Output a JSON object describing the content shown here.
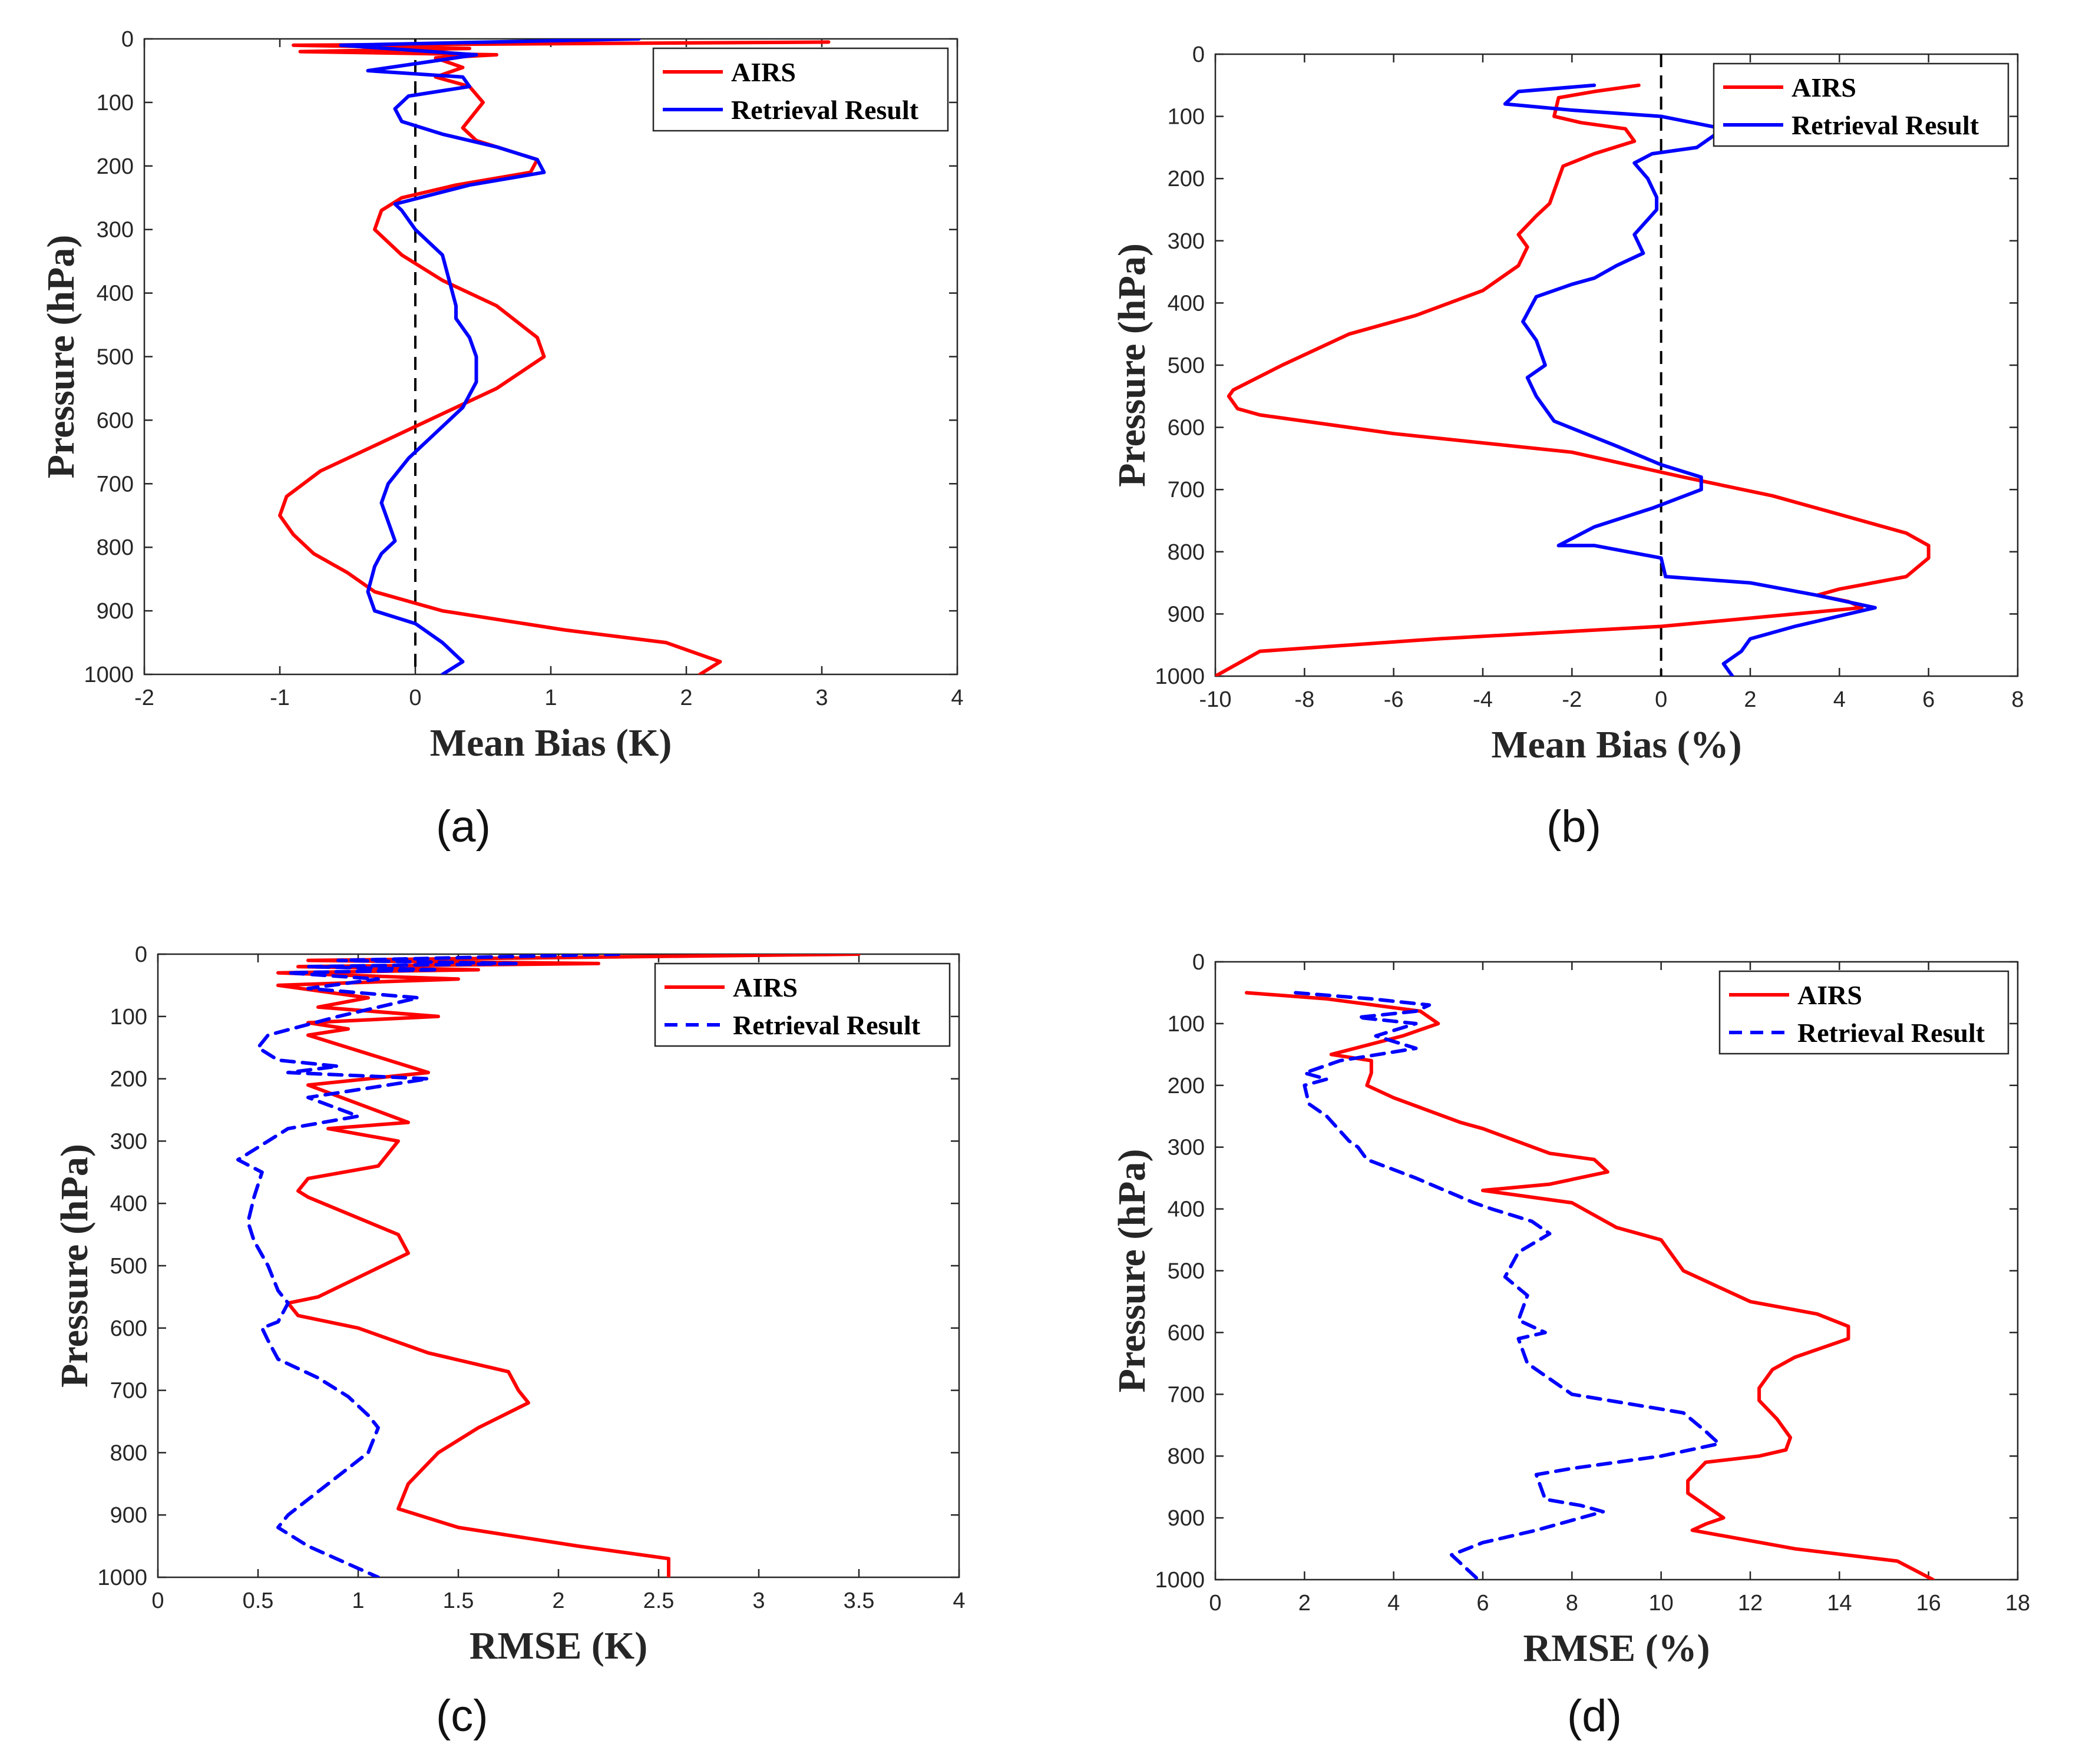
{
  "chart_data": [
    {
      "type": "line",
      "panel": "(a)",
      "xlabel": "Mean Bias (K)",
      "ylabel": "Pressure (hPa)",
      "xlim": [
        -2,
        4
      ],
      "xticks": [
        -2,
        -1,
        0,
        1,
        2,
        3,
        4
      ],
      "ylim": [
        0,
        1000
      ],
      "yticks": [
        0,
        100,
        200,
        300,
        400,
        500,
        600,
        700,
        800,
        900,
        1000
      ],
      "y_reversed": true,
      "reference_line_x": 0,
      "legend_position": "top-right",
      "series": [
        {
          "name": "AIRS",
          "color": "#ff0000",
          "dash": "solid",
          "x": [
            3.05,
            -0.9,
            0.4,
            -0.85,
            0.6,
            0.15,
            0.35,
            0.15,
            0.4,
            0.5,
            0.35,
            0.45,
            0.9,
            0.85,
            0.3,
            -0.1,
            -0.25,
            -0.3,
            -0.1,
            0.2,
            0.6,
            0.9,
            0.95,
            0.6,
            0.1,
            -0.3,
            -0.7,
            -0.95,
            -1.0,
            -0.9,
            -0.75,
            -0.5,
            -0.3,
            0.2,
            1.1,
            1.85,
            2.25,
            2.1
          ],
          "y": [
            5,
            10,
            15,
            20,
            25,
            30,
            45,
            60,
            75,
            100,
            140,
            160,
            190,
            210,
            230,
            250,
            270,
            300,
            340,
            380,
            420,
            470,
            500,
            550,
            600,
            640,
            680,
            720,
            750,
            780,
            810,
            840,
            870,
            900,
            930,
            950,
            980,
            1000
          ]
        },
        {
          "name": "Retrieval Result",
          "color": "#0000ff",
          "dash": "solid",
          "x": [
            1.65,
            -0.55,
            0.45,
            -0.35,
            0.35,
            0.4,
            -0.05,
            -0.15,
            -0.1,
            0.2,
            0.6,
            0.9,
            0.95,
            0.4,
            -0.15,
            -0.1,
            0.0,
            0.2,
            0.25,
            0.3,
            0.3,
            0.4,
            0.45,
            0.45,
            0.35,
            0.15,
            -0.05,
            -0.2,
            -0.25,
            -0.2,
            -0.15,
            -0.25,
            -0.3,
            -0.35,
            -0.3,
            0.0,
            0.2,
            0.35,
            0.2
          ],
          "y": [
            0,
            10,
            25,
            50,
            60,
            75,
            90,
            110,
            130,
            150,
            170,
            190,
            210,
            230,
            260,
            270,
            300,
            340,
            380,
            420,
            440,
            470,
            500,
            540,
            580,
            620,
            660,
            700,
            730,
            760,
            790,
            810,
            830,
            870,
            900,
            920,
            950,
            980,
            1000
          ]
        }
      ]
    },
    {
      "type": "line",
      "panel": "(b)",
      "xlabel": "Mean Bias (%)",
      "ylabel": "Pressure (hPa)",
      "xlim": [
        -10,
        8
      ],
      "xticks": [
        -10,
        -8,
        -6,
        -4,
        -2,
        0,
        2,
        4,
        6,
        8
      ],
      "ylim": [
        0,
        1000
      ],
      "yticks": [
        0,
        100,
        200,
        300,
        400,
        500,
        600,
        700,
        800,
        900,
        1000
      ],
      "y_reversed": true,
      "reference_line_x": 0,
      "legend_position": "top-right",
      "series": [
        {
          "name": "AIRS",
          "color": "#ff0000",
          "dash": "solid",
          "x": [
            -0.5,
            -1.5,
            -2.3,
            -2.4,
            -1.8,
            -0.8,
            -0.6,
            -1.5,
            -2.2,
            -2.3,
            -2.5,
            -2.8,
            -3.2,
            -3.0,
            -3.2,
            -4.0,
            -5.5,
            -7.0,
            -8.5,
            -9.6,
            -9.7,
            -9.5,
            -9.0,
            -6.0,
            -2.0,
            0.5,
            2.5,
            4.0,
            5.5,
            6.0,
            6.0,
            5.5,
            4.0,
            3.5,
            4.2,
            4.5,
            3.0,
            0.0,
            -5.0,
            -9.0,
            -10.0
          ],
          "y": [
            50,
            60,
            70,
            100,
            110,
            120,
            140,
            160,
            180,
            200,
            240,
            260,
            290,
            310,
            340,
            380,
            420,
            450,
            500,
            540,
            550,
            570,
            580,
            610,
            640,
            680,
            710,
            740,
            770,
            790,
            810,
            840,
            860,
            870,
            880,
            890,
            900,
            920,
            940,
            960,
            1000
          ]
        },
        {
          "name": "Retrieval Result",
          "color": "#0000ff",
          "dash": "solid",
          "x": [
            -1.5,
            -3.2,
            -3.5,
            -2.0,
            0.0,
            1.4,
            0.8,
            -0.2,
            -0.6,
            -0.3,
            -0.1,
            -0.1,
            -0.6,
            -0.4,
            -1.0,
            -1.5,
            -2.0,
            -2.8,
            -3.1,
            -2.8,
            -2.6,
            -3.0,
            -2.8,
            -2.4,
            -1.0,
            0.0,
            0.9,
            0.9,
            -0.2,
            -1.5,
            -2.3,
            -1.5,
            0.0,
            0.1,
            2.0,
            3.5,
            4.8,
            3.0,
            2.0,
            1.8,
            1.4,
            1.6
          ],
          "y": [
            50,
            60,
            80,
            90,
            100,
            120,
            150,
            160,
            175,
            200,
            230,
            250,
            290,
            320,
            340,
            360,
            370,
            390,
            430,
            460,
            500,
            520,
            550,
            590,
            630,
            660,
            680,
            700,
            730,
            760,
            790,
            790,
            810,
            840,
            850,
            870,
            890,
            920,
            940,
            960,
            980,
            1000
          ]
        }
      ]
    },
    {
      "type": "line",
      "panel": "(c)",
      "xlabel": "RMSE (K)",
      "ylabel": "Pressure (hPa)",
      "xlim": [
        0,
        4
      ],
      "xticks": [
        0,
        0.5,
        1,
        1.5,
        2,
        2.5,
        3,
        3.5,
        4
      ],
      "yticklabels_x": [
        "0",
        "0.5",
        "1",
        "1.5",
        "2",
        "2.5",
        "3",
        "3.5",
        "4"
      ],
      "ylim": [
        0,
        1000
      ],
      "yticks": [
        0,
        100,
        200,
        300,
        400,
        500,
        600,
        700,
        800,
        900,
        1000
      ],
      "y_reversed": true,
      "legend_position": "top-right",
      "series": [
        {
          "name": "AIRS",
          "color": "#ff0000",
          "dash": "solid",
          "x": [
            3.5,
            0.75,
            2.2,
            0.7,
            1.6,
            0.6,
            1.5,
            0.6,
            1.05,
            0.8,
            1.4,
            0.75,
            0.95,
            0.75,
            1.35,
            0.75,
            1.25,
            0.85,
            1.2,
            1.1,
            0.75,
            0.7,
            0.75,
            1.2,
            1.25,
            0.8,
            0.65,
            0.7,
            1.0,
            1.35,
            1.75,
            1.8,
            1.85,
            1.6,
            1.4,
            1.25,
            1.2,
            1.5,
            2.1,
            2.55,
            2.55
          ],
          "y": [
            0,
            10,
            15,
            20,
            25,
            30,
            40,
            50,
            70,
            85,
            100,
            110,
            120,
            130,
            190,
            210,
            270,
            280,
            300,
            340,
            360,
            380,
            390,
            450,
            480,
            550,
            560,
            580,
            600,
            640,
            670,
            700,
            720,
            760,
            800,
            850,
            890,
            920,
            950,
            970,
            1000
          ]
        },
        {
          "name": "Retrieval Result",
          "color": "#0000ff",
          "dash": "dashed",
          "x": [
            2.3,
            0.9,
            1.8,
            0.75,
            1.4,
            0.65,
            1.1,
            0.75,
            1.3,
            0.9,
            0.55,
            0.5,
            0.6,
            0.9,
            0.65,
            1.35,
            0.75,
            1.0,
            0.65,
            0.55,
            0.45,
            0.4,
            0.52,
            0.48,
            0.45,
            0.48,
            0.55,
            0.6,
            0.65,
            0.6,
            0.52,
            0.55,
            0.6,
            0.8,
            0.95,
            1.05,
            1.1,
            1.05,
            0.85,
            0.65,
            0.6,
            0.75,
            1.1
          ],
          "y": [
            0,
            10,
            15,
            20,
            25,
            30,
            40,
            55,
            70,
            100,
            130,
            150,
            170,
            180,
            190,
            200,
            230,
            260,
            280,
            300,
            320,
            330,
            350,
            390,
            430,
            460,
            500,
            540,
            560,
            590,
            600,
            620,
            650,
            680,
            710,
            740,
            760,
            800,
            850,
            900,
            920,
            950,
            1000
          ]
        }
      ]
    },
    {
      "type": "line",
      "panel": "(d)",
      "xlabel": "RMSE (%)",
      "ylabel": "Pressure (hPa)",
      "xlim": [
        0,
        18
      ],
      "xticks": [
        0,
        2,
        4,
        6,
        8,
        10,
        12,
        14,
        16,
        18
      ],
      "ylim": [
        0,
        1000
      ],
      "yticks": [
        0,
        100,
        200,
        300,
        400,
        500,
        600,
        700,
        800,
        900,
        1000
      ],
      "y_reversed": true,
      "legend_position": "top-right",
      "series": [
        {
          "name": "AIRS",
          "color": "#ff0000",
          "dash": "solid",
          "x": [
            0.7,
            2.5,
            4.6,
            5.0,
            4.2,
            2.6,
            3.5,
            3.5,
            3.4,
            4.0,
            5.5,
            6.0,
            7.5,
            8.5,
            8.8,
            7.5,
            6.0,
            7.0,
            8.0,
            9.0,
            10.0,
            10.5,
            12.0,
            13.5,
            14.2,
            14.2,
            13.0,
            12.5,
            12.2,
            12.2,
            12.6,
            12.9,
            12.8,
            12.2,
            11.0,
            10.6,
            10.6,
            11.0,
            11.4,
            11.0,
            10.7,
            13.0,
            15.3,
            16.1
          ],
          "y": [
            50,
            60,
            80,
            100,
            120,
            150,
            160,
            180,
            200,
            220,
            260,
            270,
            310,
            320,
            340,
            360,
            370,
            380,
            390,
            430,
            450,
            500,
            550,
            570,
            590,
            610,
            640,
            660,
            690,
            710,
            740,
            770,
            790,
            800,
            810,
            840,
            860,
            880,
            900,
            910,
            920,
            950,
            970,
            1000
          ]
        },
        {
          "name": "Retrieval Result",
          "color": "#0000ff",
          "dash": "dashed",
          "x": [
            1.8,
            3.5,
            4.8,
            4.5,
            3.2,
            4.5,
            3.6,
            4.5,
            2.8,
            2.0,
            2.5,
            2.0,
            2.1,
            2.5,
            3.0,
            3.2,
            3.4,
            4.5,
            5.8,
            6.2,
            7.1,
            7.5,
            6.8,
            6.5,
            7.0,
            6.8,
            7.4,
            6.8,
            7.0,
            8.0,
            10.5,
            11.0,
            11.3,
            10.0,
            8.0,
            7.2,
            7.4,
            8.2,
            8.7,
            7.2,
            6.0,
            5.3,
            5.9
          ],
          "y": [
            50,
            60,
            70,
            80,
            90,
            100,
            120,
            140,
            160,
            180,
            190,
            200,
            230,
            250,
            290,
            300,
            320,
            350,
            390,
            400,
            420,
            440,
            470,
            510,
            540,
            580,
            600,
            610,
            650,
            700,
            730,
            760,
            780,
            800,
            820,
            830,
            870,
            880,
            890,
            920,
            940,
            960,
            1000
          ]
        }
      ]
    }
  ],
  "captions": [
    "(a)",
    "(b)",
    "(c)",
    "(d)"
  ]
}
